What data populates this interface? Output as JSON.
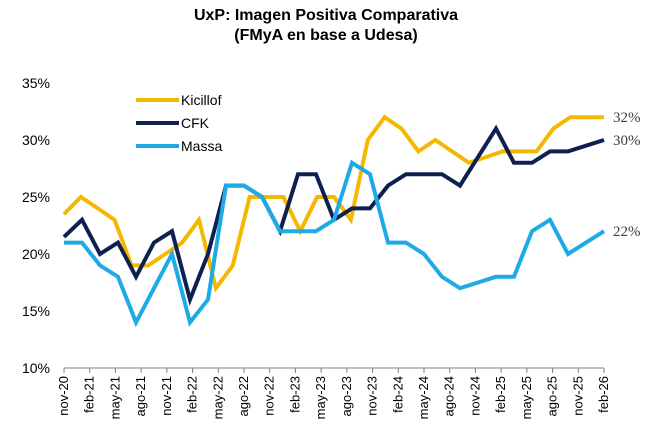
{
  "chart_data": {
    "type": "line",
    "title_line1": "UxP: Imagen Positiva Comparativa",
    "title_line2": "(FMyA en base a Udesa)",
    "xlabel": "",
    "ylabel": "",
    "ylim": [
      10,
      35
    ],
    "y_ticks": [
      "10%",
      "15%",
      "20%",
      "25%",
      "30%",
      "35%"
    ],
    "y_tick_values": [
      10,
      15,
      20,
      25,
      30,
      35
    ],
    "x_tick_labels": [
      "nov-20",
      "feb-21",
      "may-21",
      "ago-21",
      "nov-21",
      "feb-22",
      "may-22",
      "ago-22",
      "nov-22",
      "feb-23",
      "may-23",
      "ago-23",
      "nov-23",
      "feb-24",
      "may-24",
      "ago-24",
      "nov-24",
      "feb-25",
      "may-25",
      "ago-25",
      "nov-25",
      "feb-26"
    ],
    "series": [
      {
        "name": "Kicillof",
        "color": "#F5B800",
        "end_label": "32%",
        "values": [
          23.5,
          25,
          24,
          23,
          19,
          19,
          20,
          21,
          23,
          17,
          19,
          25,
          25,
          25,
          22,
          25,
          25,
          23,
          30,
          32,
          31,
          29,
          30,
          29,
          28,
          28.5,
          29,
          29,
          29,
          31,
          32,
          32,
          32
        ]
      },
      {
        "name": "CFK",
        "color": "#0D2050",
        "end_label": "30%",
        "values": [
          21.5,
          23,
          20,
          21,
          18,
          21,
          22,
          16,
          20,
          26,
          26,
          25,
          22,
          27,
          27,
          23,
          24,
          24,
          26,
          27,
          27,
          27,
          26,
          28.5,
          31,
          28,
          28,
          29,
          29,
          29.5,
          30
        ]
      },
      {
        "name": "Massa",
        "color": "#1EAAE6",
        "end_label": "22%",
        "values": [
          21,
          21,
          19,
          18,
          14,
          17,
          20,
          14,
          16,
          26,
          26,
          25,
          22,
          22,
          22,
          23,
          28,
          27,
          21,
          21,
          20,
          18,
          17,
          17.5,
          18,
          18,
          22,
          23,
          20,
          21,
          22
        ]
      }
    ],
    "legend": [
      "Kicillof",
      "CFK",
      "Massa"
    ],
    "legend_position": "top-left"
  }
}
